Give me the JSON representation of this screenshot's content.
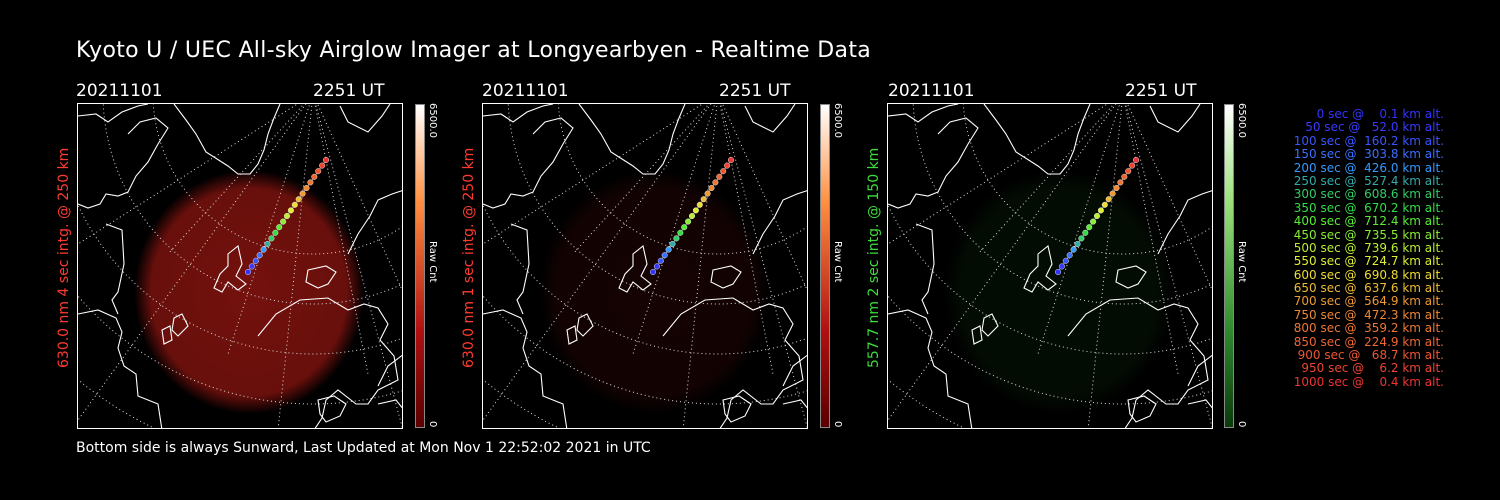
{
  "title": "Kyoto U / UEC All-sky Airglow Imager at Longyearbyen - Realtime Data",
  "footer": "Bottom side is always Sunward, Last Updated at Mon Nov  1 22:52:02 2021 in UTC",
  "panels": [
    {
      "date": "20211101",
      "time": "2251 UT",
      "ylabel": "630.0 nm 4 sec intg. @ 250 km",
      "label_color": "#ff3b2f",
      "cbar_max": "6500.0",
      "cbar_label": "Raw Cnt",
      "cbar_min": "0",
      "glow_color": "#7a120e",
      "glow_level": 0.95
    },
    {
      "date": "20211101",
      "time": "2251 UT",
      "ylabel": "630.0 nm 1 sec intg. @ 250 km",
      "label_color": "#ff3b2f",
      "cbar_max": "6500.0",
      "cbar_label": "Raw Cnt",
      "cbar_min": "0",
      "glow_color": "#3a0807",
      "glow_level": 0.35
    },
    {
      "date": "20211101",
      "time": "2251 UT",
      "ylabel": "557.7 nm 2 sec intg. @ 150 km",
      "label_color": "#3ddc3d",
      "cbar_max": "6500.0",
      "cbar_label": "Raw Cnt",
      "cbar_min": "0",
      "glow_color": "#0b2a0b",
      "glow_level": 0.3
    }
  ],
  "colors": {
    "red_bar_top": "#ffffff",
    "red_bar_bottom": "#5a0000",
    "green_bar_top": "#ffffff",
    "green_bar_bottom": "#0a3a0a"
  },
  "legend": [
    {
      "text": "   0 sec @    0.1 km alt.",
      "color": "#3333ff"
    },
    {
      "text": "  50 sec @   52.0 km alt.",
      "color": "#3a3aff"
    },
    {
      "text": " 100 sec @  160.2 km alt.",
      "color": "#3a55ff"
    },
    {
      "text": " 150 sec @  303.8 km alt.",
      "color": "#3a6fff"
    },
    {
      "text": " 200 sec @  426.0 km alt.",
      "color": "#3399ff"
    },
    {
      "text": " 250 sec @  527.4 km alt.",
      "color": "#33aaaa"
    },
    {
      "text": " 300 sec @  608.6 km alt.",
      "color": "#33cc66"
    },
    {
      "text": " 350 sec @  670.2 km alt.",
      "color": "#33dd44"
    },
    {
      "text": " 400 sec @  712.4 km alt.",
      "color": "#55ee33"
    },
    {
      "text": " 450 sec @  735.5 km alt.",
      "color": "#88ee33"
    },
    {
      "text": " 500 sec @  739.6 km alt.",
      "color": "#bbee33"
    },
    {
      "text": " 550 sec @  724.7 km alt.",
      "color": "#ddee33"
    },
    {
      "text": " 600 sec @  690.8 km alt.",
      "color": "#eedd33"
    },
    {
      "text": " 650 sec @  637.6 km alt.",
      "color": "#eebb33"
    },
    {
      "text": " 700 sec @  564.9 km alt.",
      "color": "#ee9933"
    },
    {
      "text": " 750 sec @  472.3 km alt.",
      "color": "#ee8833"
    },
    {
      "text": " 800 sec @  359.2 km alt.",
      "color": "#ee7733"
    },
    {
      "text": " 850 sec @  224.9 km alt.",
      "color": "#ee6633"
    },
    {
      "text": " 900 sec @   68.7 km alt.",
      "color": "#ee5533"
    },
    {
      "text": " 950 sec @    6.2 km alt.",
      "color": "#ee4433"
    },
    {
      "text": "1000 sec @    0.4 km alt.",
      "color": "#ee3333"
    }
  ]
}
